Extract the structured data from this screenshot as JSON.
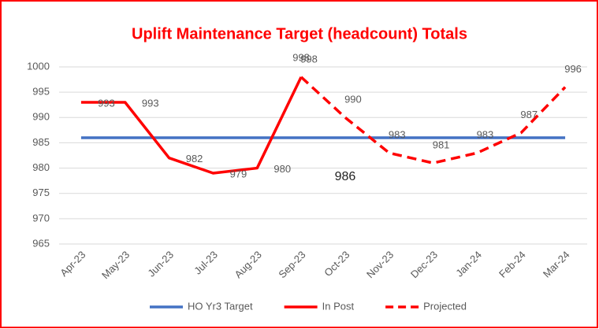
{
  "chart_data": {
    "type": "line",
    "title": "Uplift Maintenance Target (headcount) Totals",
    "categories": [
      "Apr-23",
      "May-23",
      "Jun-23",
      "Jul-23",
      "Aug-23",
      "Sep-23",
      "Oct-23",
      "Nov-23",
      "Dec-23",
      "Jan-24",
      "Feb-24",
      "Mar-24"
    ],
    "series": [
      {
        "name": "HO  Yr3 Target",
        "color": "#4472c4",
        "dashed": false,
        "values": [
          986,
          986,
          986,
          986,
          986,
          986,
          986,
          986,
          986,
          986,
          986,
          986
        ],
        "value_labels": [
          null,
          null,
          null,
          null,
          null,
          null,
          "986",
          null,
          null,
          null,
          null,
          null
        ]
      },
      {
        "name": "In Post",
        "color": "#ff0000",
        "dashed": false,
        "values": [
          993,
          993,
          982,
          979,
          980,
          998,
          null,
          null,
          null,
          null,
          null,
          null
        ]
      },
      {
        "name": "Projected",
        "color": "#ff0000",
        "dashed": true,
        "values": [
          null,
          null,
          null,
          null,
          null,
          998,
          990,
          983,
          981,
          983,
          987,
          996
        ]
      }
    ],
    "ylim": [
      965,
      1000
    ],
    "yticks": [
      965,
      970,
      975,
      980,
      985,
      990,
      995,
      1000
    ],
    "grid": true,
    "legend": "bottom"
  }
}
